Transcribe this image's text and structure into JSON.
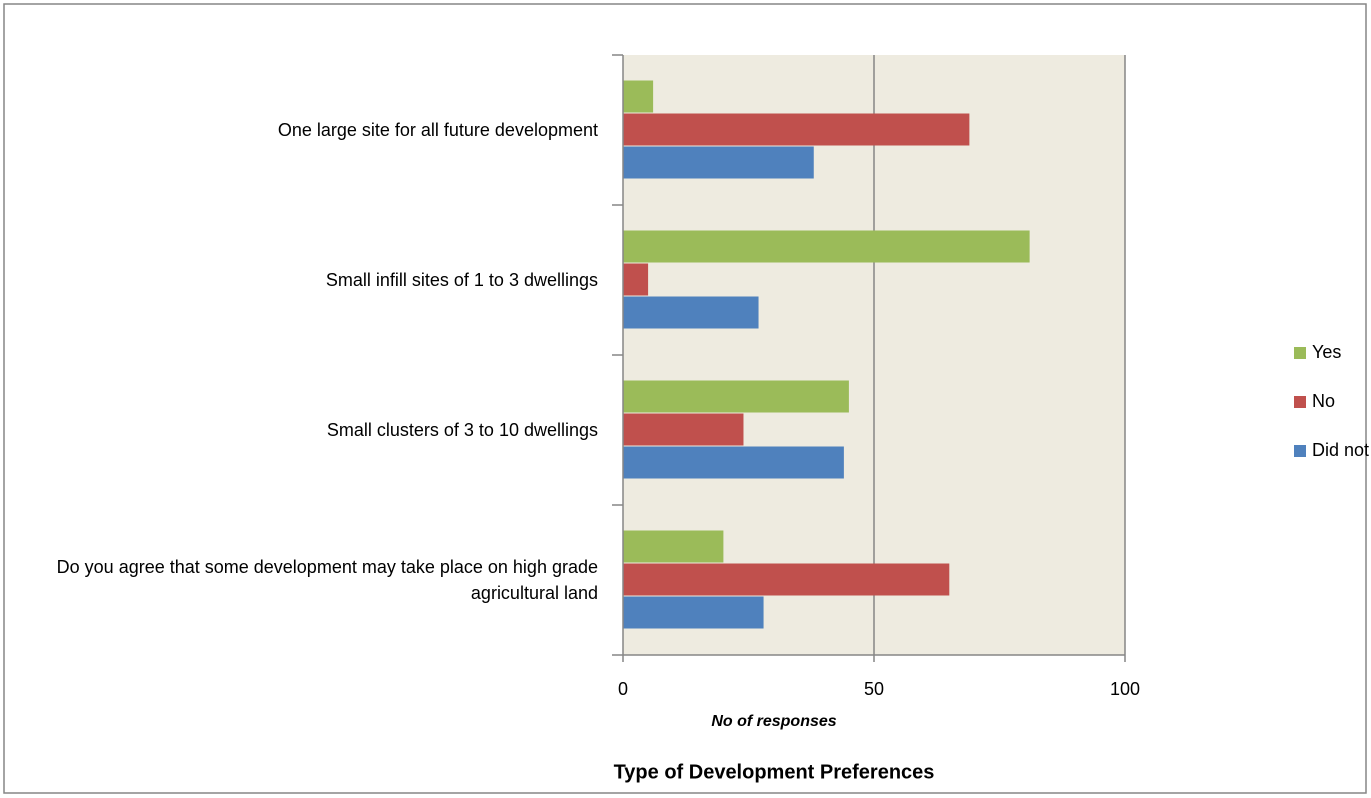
{
  "chart_data": {
    "type": "bar",
    "orientation": "horizontal",
    "title": "Type of Development Preferences",
    "x_label": "No of responses",
    "categories": [
      "One large site for all future development",
      "Small infill sites of 1 to 3 dwellings",
      "Small clusters of 3 to 10 dwellings",
      "Do you agree that some development may take place on high grade agricultural land"
    ],
    "series": [
      {
        "name": "Yes",
        "color": "#9bbb59",
        "values": [
          6,
          81,
          45,
          20
        ]
      },
      {
        "name": "No",
        "color": "#c0504d",
        "values": [
          69,
          5,
          24,
          65
        ]
      },
      {
        "name": "Did not respond",
        "color": "#4f81bd",
        "values": [
          38,
          27,
          44,
          28
        ]
      }
    ],
    "xlim": [
      0,
      100
    ],
    "xticks": [
      0,
      50,
      100
    ],
    "grid": true,
    "legend": "right",
    "plot_background": "#eeebe0"
  }
}
